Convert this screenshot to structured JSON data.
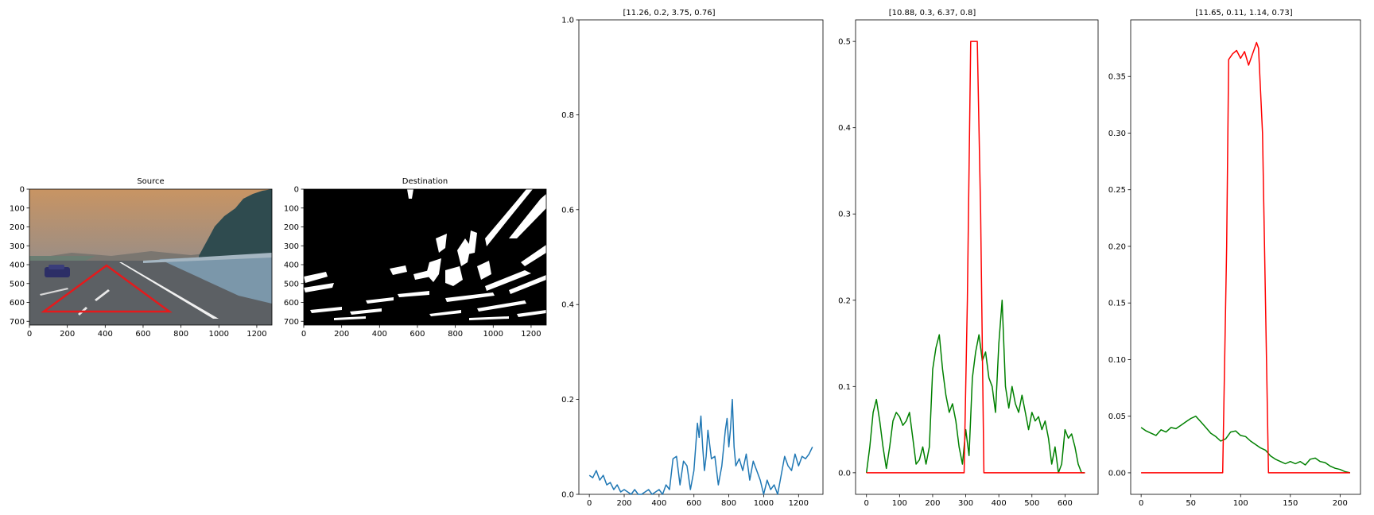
{
  "colors": {
    "sky_top": "#c89463",
    "sky_bottom": "#9c8e84",
    "road": "#5c6064",
    "grass": "#6f8a9a",
    "trees": "#2f4b4f",
    "roi_red": "#e41a1c",
    "hist_blue": "#1f77b4",
    "hist_green": "#008000",
    "line_red": "#ff0000"
  },
  "chart_data": [
    {
      "type": "image",
      "title": "Source",
      "x_ticks": [
        0,
        200,
        400,
        600,
        800,
        1000,
        1200
      ],
      "y_ticks": [
        0,
        100,
        200,
        300,
        400,
        500,
        600,
        700
      ],
      "xlim": [
        0,
        1280
      ],
      "ylim": [
        720,
        0
      ],
      "roi_polygon": [
        [
          440,
          410
        ],
        [
          80,
          660
        ],
        [
          800,
          660
        ]
      ]
    },
    {
      "type": "image",
      "title": "Destination",
      "x_ticks": [
        0,
        200,
        400,
        600,
        800,
        1000,
        1200
      ],
      "y_ticks": [
        0,
        100,
        200,
        300,
        400,
        500,
        600,
        700
      ],
      "xlim": [
        0,
        1280
      ],
      "ylim": [
        720,
        0
      ]
    },
    {
      "type": "line",
      "title": "[11.26, 0.2, 3.75, 0.76]",
      "x_ticks": [
        0,
        200,
        400,
        600,
        800,
        1000,
        1200
      ],
      "y_ticks": [
        "0.0",
        "0.2",
        "0.4",
        "0.6",
        "0.8",
        "1.0"
      ],
      "xlim": [
        -60,
        1340
      ],
      "ylim": [
        0,
        1.0
      ],
      "series": [
        {
          "color": "#1f77b4",
          "x": [
            0,
            20,
            40,
            60,
            80,
            100,
            120,
            140,
            160,
            180,
            200,
            220,
            240,
            260,
            280,
            300,
            320,
            340,
            360,
            380,
            400,
            420,
            440,
            460,
            480,
            500,
            520,
            540,
            560,
            580,
            600,
            610,
            620,
            630,
            640,
            650,
            660,
            670,
            680,
            700,
            720,
            740,
            760,
            780,
            790,
            800,
            810,
            820,
            830,
            840,
            860,
            880,
            900,
            920,
            940,
            960,
            980,
            1000,
            1020,
            1040,
            1060,
            1080,
            1100,
            1120,
            1140,
            1160,
            1180,
            1200,
            1220,
            1240,
            1260,
            1280
          ],
          "y": [
            0.04,
            0.035,
            0.05,
            0.03,
            0.04,
            0.02,
            0.025,
            0.01,
            0.02,
            0.005,
            0.01,
            0.005,
            0.0,
            0.01,
            0.0,
            0.0,
            0.005,
            0.01,
            0.0,
            0.005,
            0.01,
            0.0,
            0.02,
            0.01,
            0.075,
            0.08,
            0.02,
            0.07,
            0.06,
            0.01,
            0.05,
            0.1,
            0.15,
            0.12,
            0.165,
            0.1,
            0.05,
            0.08,
            0.135,
            0.075,
            0.08,
            0.02,
            0.06,
            0.135,
            0.16,
            0.1,
            0.14,
            0.2,
            0.1,
            0.06,
            0.075,
            0.05,
            0.085,
            0.03,
            0.07,
            0.05,
            0.03,
            0.0,
            0.03,
            0.01,
            0.02,
            0.0,
            0.04,
            0.08,
            0.06,
            0.05,
            0.085,
            0.06,
            0.08,
            0.075,
            0.085,
            0.1
          ]
        }
      ]
    },
    {
      "type": "line",
      "title": "[10.88, 0.3, 6.37, 0.8]",
      "x_ticks": [
        0,
        100,
        200,
        300,
        400,
        500,
        600
      ],
      "y_ticks": [
        "0.0",
        "0.1",
        "0.2",
        "0.3",
        "0.4",
        "0.5"
      ],
      "xlim": [
        -33,
        700
      ],
      "ylim": [
        -0.025,
        0.525
      ],
      "series": [
        {
          "color": "#008000",
          "x": [
            0,
            10,
            20,
            30,
            40,
            50,
            60,
            70,
            80,
            90,
            100,
            110,
            120,
            130,
            140,
            150,
            160,
            170,
            180,
            190,
            200,
            210,
            220,
            230,
            240,
            250,
            260,
            270,
            280,
            290,
            300,
            310,
            320,
            330,
            340,
            350,
            360,
            370,
            380,
            390,
            400,
            410,
            420,
            430,
            440,
            450,
            460,
            470,
            480,
            490,
            500,
            510,
            520,
            530,
            540,
            550,
            560,
            570,
            580,
            590,
            600,
            610,
            620,
            630,
            640,
            650,
            660
          ],
          "y": [
            0.0,
            0.03,
            0.07,
            0.085,
            0.06,
            0.03,
            0.005,
            0.03,
            0.06,
            0.07,
            0.065,
            0.055,
            0.06,
            0.07,
            0.04,
            0.01,
            0.015,
            0.03,
            0.01,
            0.03,
            0.12,
            0.145,
            0.16,
            0.12,
            0.09,
            0.07,
            0.08,
            0.06,
            0.03,
            0.01,
            0.05,
            0.02,
            0.11,
            0.14,
            0.16,
            0.13,
            0.14,
            0.11,
            0.1,
            0.07,
            0.15,
            0.2,
            0.1,
            0.075,
            0.1,
            0.08,
            0.07,
            0.09,
            0.07,
            0.05,
            0.07,
            0.06,
            0.065,
            0.05,
            0.06,
            0.04,
            0.01,
            0.03,
            0.0,
            0.01,
            0.05,
            0.04,
            0.045,
            0.03,
            0.01,
            0.0,
            0.0
          ]
        },
        {
          "color": "#ff0000",
          "x": [
            0,
            295,
            305,
            315,
            325,
            335,
            345,
            355,
            360,
            660
          ],
          "y": [
            0,
            0,
            0.2,
            0.5,
            0.5,
            0.5,
            0.3,
            0,
            0,
            0
          ]
        }
      ]
    },
    {
      "type": "line",
      "title": "[11.65, 0.11, 1.14, 0.73]",
      "x_ticks": [
        0,
        50,
        100,
        150,
        200
      ],
      "y_ticks": [
        "0.00",
        "0.05",
        "0.10",
        "0.15",
        "0.20",
        "0.25",
        "0.30",
        "0.35"
      ],
      "xlim": [
        -10.5,
        220.5
      ],
      "ylim": [
        -0.019,
        0.4
      ],
      "series": [
        {
          "color": "#008000",
          "x": [
            0,
            5,
            10,
            15,
            20,
            25,
            30,
            35,
            40,
            45,
            50,
            55,
            60,
            65,
            70,
            75,
            80,
            85,
            90,
            95,
            100,
            105,
            110,
            115,
            120,
            125,
            130,
            135,
            140,
            145,
            150,
            155,
            160,
            165,
            170,
            175,
            180,
            185,
            190,
            195,
            200,
            205,
            210
          ],
          "y": [
            0.04,
            0.037,
            0.035,
            0.033,
            0.038,
            0.036,
            0.04,
            0.039,
            0.042,
            0.045,
            0.048,
            0.05,
            0.045,
            0.04,
            0.035,
            0.032,
            0.028,
            0.03,
            0.036,
            0.037,
            0.033,
            0.032,
            0.028,
            0.025,
            0.022,
            0.02,
            0.015,
            0.012,
            0.01,
            0.008,
            0.01,
            0.008,
            0.01,
            0.007,
            0.012,
            0.013,
            0.01,
            0.009,
            0.006,
            0.004,
            0.003,
            0.001,
            0.0
          ]
        },
        {
          "color": "#ff0000",
          "x": [
            0,
            82,
            86,
            88,
            92,
            96,
            100,
            104,
            108,
            112,
            116,
            118,
            122,
            126,
            128,
            130,
            210
          ],
          "y": [
            0,
            0,
            0.2,
            0.365,
            0.37,
            0.373,
            0.366,
            0.372,
            0.36,
            0.37,
            0.38,
            0.375,
            0.3,
            0.1,
            0,
            0,
            0
          ]
        }
      ]
    }
  ]
}
